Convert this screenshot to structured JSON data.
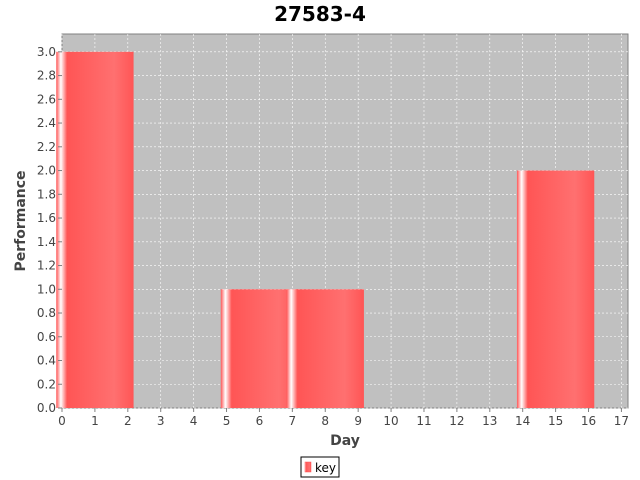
{
  "chart_data": {
    "type": "bar",
    "title": "27583-4",
    "xlabel": "Day",
    "ylabel": "Performance",
    "xlim": [
      0,
      17.2
    ],
    "ylim": [
      0,
      3.15
    ],
    "x_ticks": [
      0,
      1,
      2,
      3,
      4,
      5,
      6,
      7,
      8,
      9,
      10,
      11,
      12,
      13,
      14,
      15,
      16,
      17
    ],
    "y_ticks": [
      0.0,
      0.2,
      0.4,
      0.6,
      0.8,
      1.0,
      1.2,
      1.4,
      1.6,
      1.8,
      2.0,
      2.2,
      2.4,
      2.6,
      2.8,
      3.0
    ],
    "bar_width": 2.35,
    "series": [
      {
        "name": "key",
        "color": "#ff5555",
        "points": [
          {
            "x": 1,
            "y": 3
          },
          {
            "x": 6,
            "y": 1
          },
          {
            "x": 8,
            "y": 1
          },
          {
            "x": 15,
            "y": 2
          }
        ]
      }
    ],
    "legend": {
      "position": "bottom",
      "label": "key"
    },
    "grid": true,
    "plot_background": "#c0c0c0",
    "grid_color": "#ffffff"
  }
}
